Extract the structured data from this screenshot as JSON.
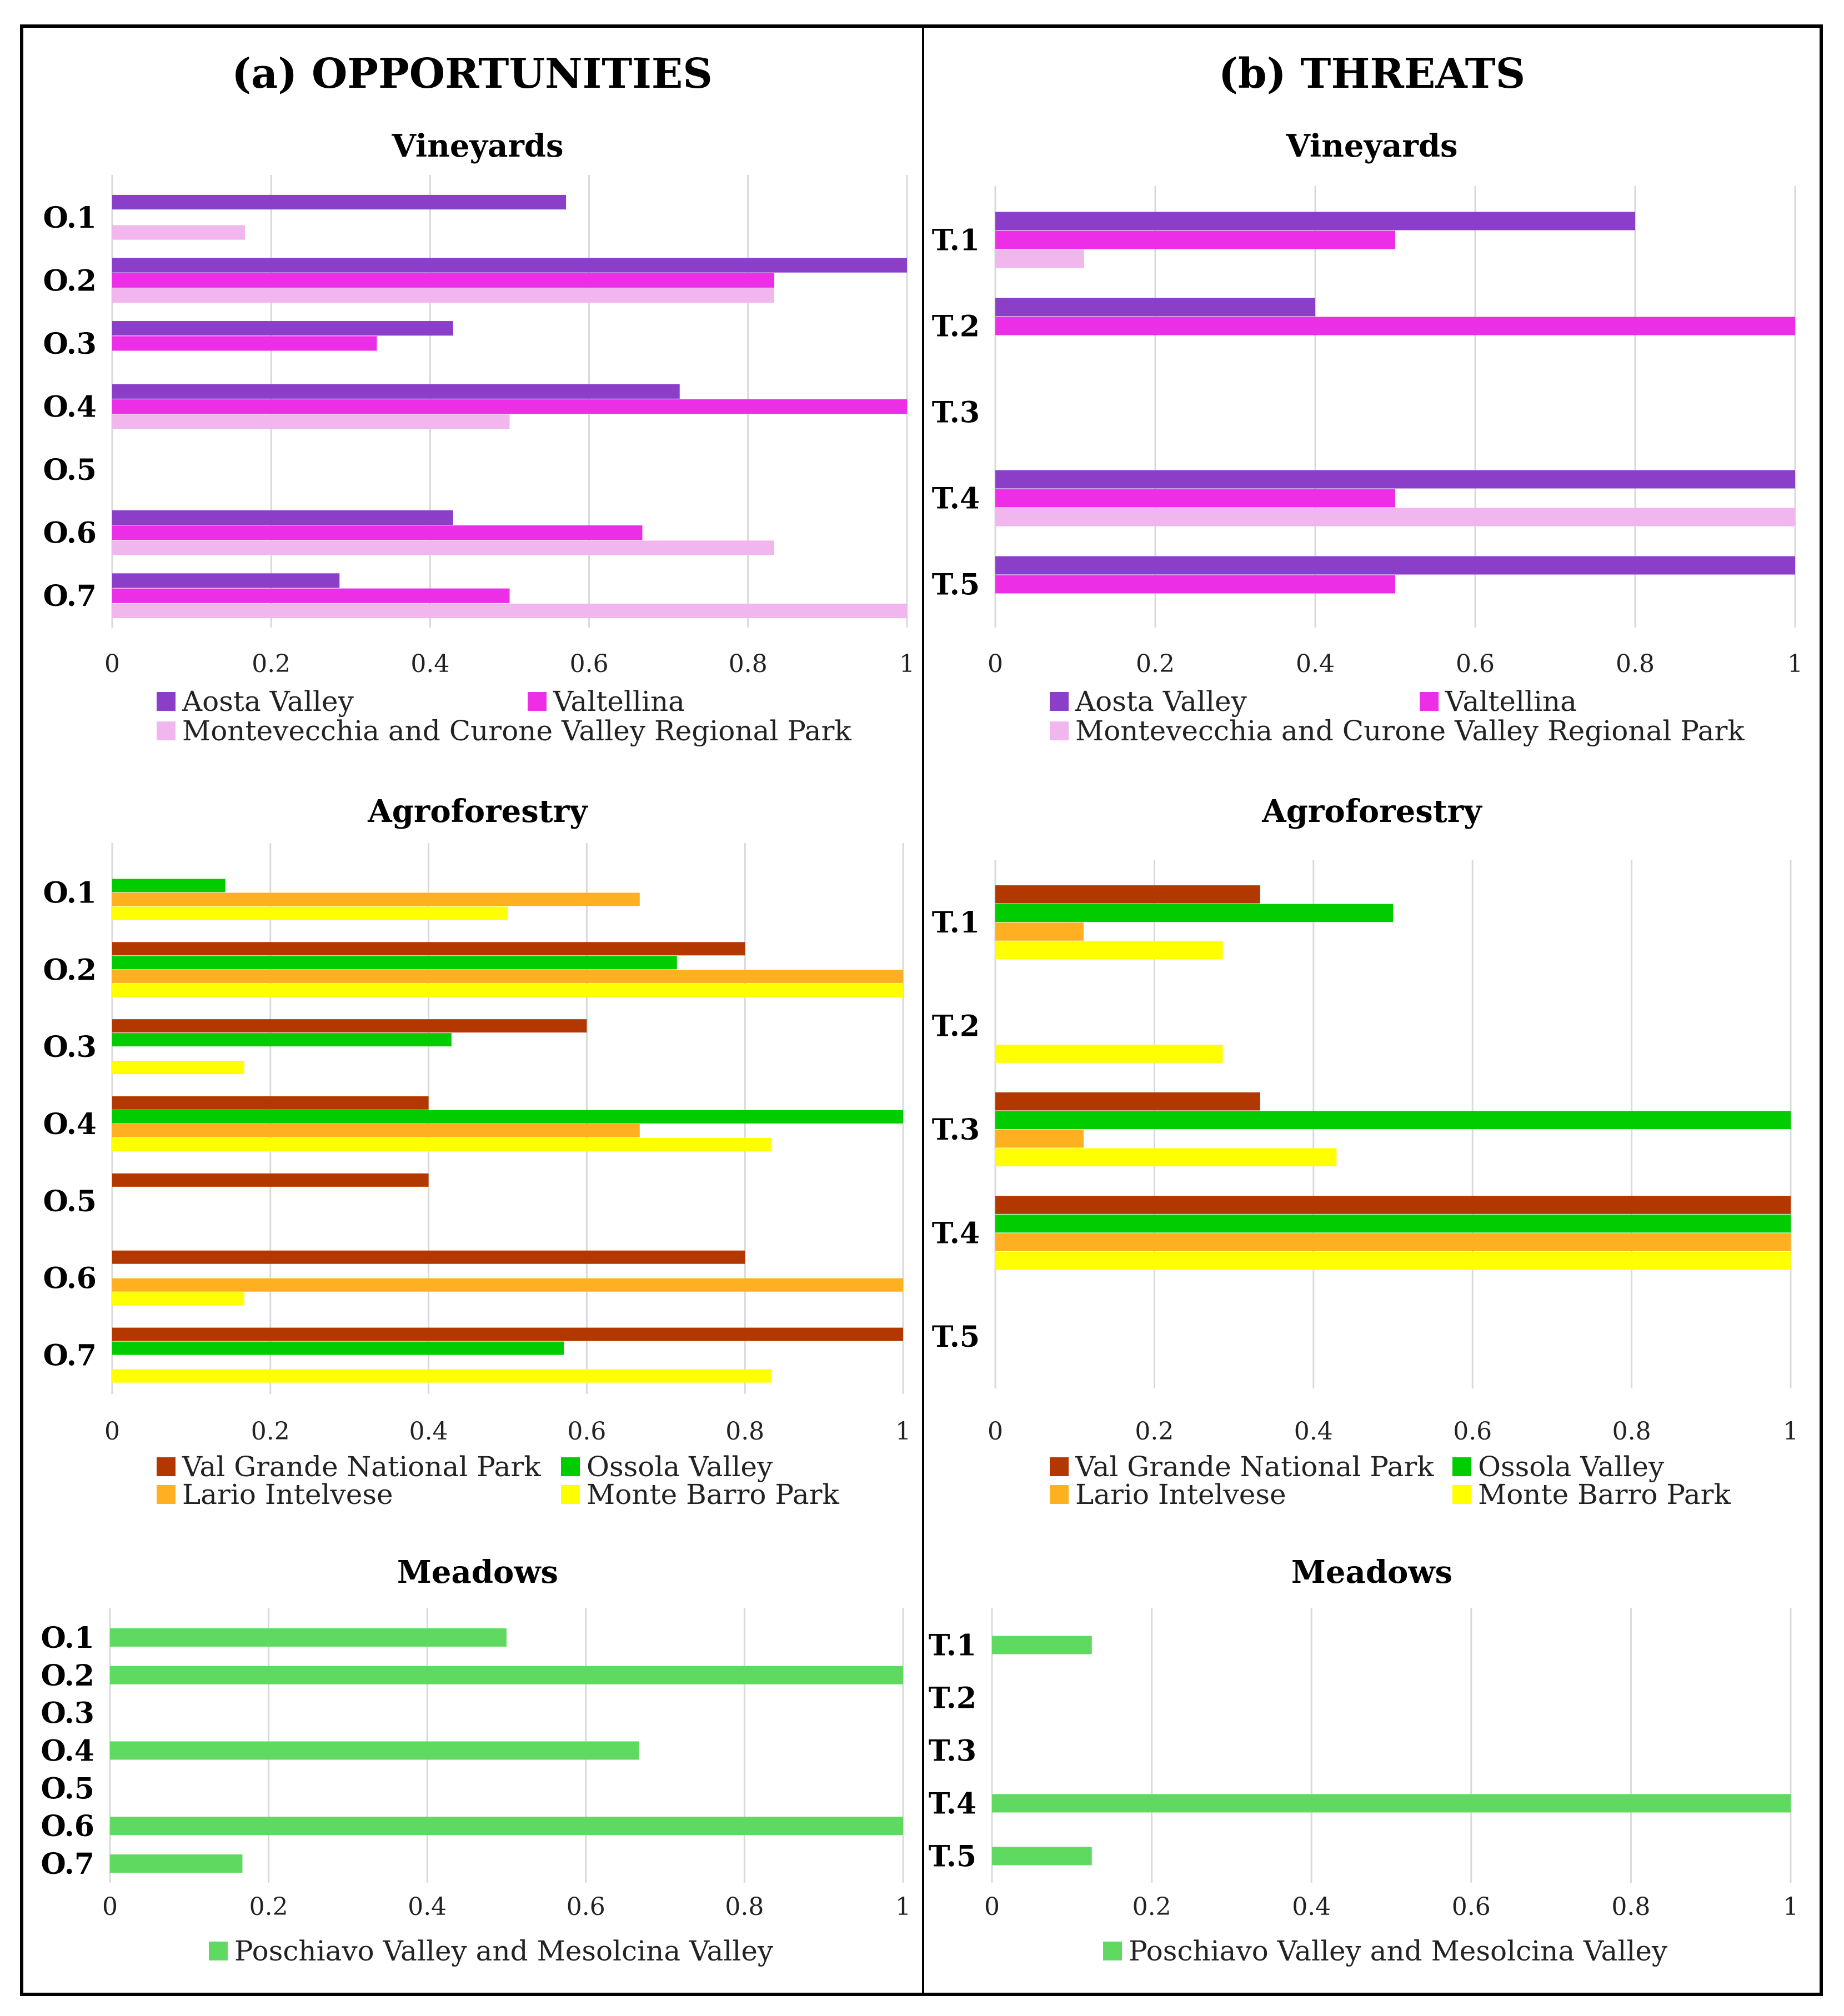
{
  "columns": {
    "left": {
      "title": "(a) OPPORTUNITIES"
    },
    "right": {
      "title": "(b) THREATS"
    }
  },
  "series_colors": {
    "Aosta Valley": "#8B3FC9",
    "Valtellina": "#EC2FE6",
    "Montevecchia and Curone Valley Regional Park": "#F2B6EE",
    "Val Grande National Park": "#B23800",
    "Ossola Valley": "#00CC00",
    "Lario Intelvese": "#FFB020",
    "Monte Barro Park": "#FFFF00",
    "Poschiavo Valley and Mesolcina Valley": "#5FD95F"
  },
  "chart_data": [
    {
      "id": "opp-vineyards",
      "type": "bar",
      "orientation": "horizontal",
      "title": "Vineyards",
      "xlim": [
        0,
        1
      ],
      "xticks": [
        "0",
        "0.2",
        "0.4",
        "0.6",
        "0.8",
        "1"
      ],
      "categories": [
        "O.1",
        "O.2",
        "O.3",
        "O.4",
        "O.5",
        "O.6",
        "O.7"
      ],
      "series": [
        {
          "name": "Aosta Valley",
          "values": [
            0.571,
            1.0,
            0.429,
            0.714,
            0,
            0.429,
            0.286
          ]
        },
        {
          "name": "Valtellina",
          "values": [
            0,
            0.833,
            0.333,
            1.0,
            0,
            0.667,
            0.5
          ]
        },
        {
          "name": "Montevecchia and Curone Valley Regional Park",
          "values": [
            0.167,
            0.833,
            0,
            0.5,
            0,
            0.833,
            1.0
          ]
        }
      ],
      "legend": [
        "Aosta Valley",
        "Valtellina",
        "Montevecchia and Curone Valley Regional Park"
      ]
    },
    {
      "id": "opp-agroforestry",
      "type": "bar",
      "orientation": "horizontal",
      "title": "Agroforestry",
      "xlim": [
        0,
        1
      ],
      "xticks": [
        "0",
        "0.2",
        "0.4",
        "0.6",
        "0.8",
        "1"
      ],
      "categories": [
        "O.1",
        "O.2",
        "O.3",
        "O.4",
        "O.5",
        "O.6",
        "O.7"
      ],
      "series": [
        {
          "name": "Val Grande National Park",
          "values": [
            0,
            0.8,
            0.6,
            0.4,
            0.4,
            0.8,
            1.0
          ]
        },
        {
          "name": "Ossola Valley",
          "values": [
            0.143,
            0.714,
            0.429,
            1.0,
            0,
            0,
            0.571
          ]
        },
        {
          "name": "Lario Intelvese",
          "values": [
            0.667,
            1.0,
            0,
            0.667,
            0,
            1.0,
            0
          ]
        },
        {
          "name": "Monte Barro Park",
          "values": [
            0.5,
            1.0,
            0.167,
            0.833,
            0,
            0.167,
            0.833
          ]
        }
      ],
      "legend": [
        "Val Grande National Park",
        "Ossola Valley",
        "Lario Intelvese",
        "Monte Barro Park"
      ]
    },
    {
      "id": "opp-meadows",
      "type": "bar",
      "orientation": "horizontal",
      "title": "Meadows",
      "xlim": [
        0,
        1
      ],
      "xticks": [
        "0",
        "0.2",
        "0.4",
        "0.6",
        "0.8",
        "1"
      ],
      "categories": [
        "O.1",
        "O.2",
        "O.3",
        "O.4",
        "O.5",
        "O.6",
        "O.7"
      ],
      "series": [
        {
          "name": "Poschiavo Valley and Mesolcina Valley",
          "values": [
            0.5,
            1.0,
            0,
            0.667,
            0,
            1.0,
            0.167
          ]
        }
      ],
      "legend": [
        "Poschiavo Valley and Mesolcina Valley"
      ]
    },
    {
      "id": "thr-vineyards",
      "type": "bar",
      "orientation": "horizontal",
      "title": "Vineyards",
      "xlim": [
        0,
        1
      ],
      "xticks": [
        "0",
        "0.2",
        "0.4",
        "0.6",
        "0.8",
        "1"
      ],
      "categories": [
        "T.1",
        "T.2",
        "T.3",
        "T.4",
        "T.5"
      ],
      "series": [
        {
          "name": "Aosta Valley",
          "values": [
            0.8,
            0.4,
            0,
            1.0,
            1.0
          ]
        },
        {
          "name": "Valtellina",
          "values": [
            0.5,
            1.0,
            0,
            0.5,
            0.5
          ]
        },
        {
          "name": "Montevecchia and Curone Valley Regional Park",
          "values": [
            0.111,
            0,
            0,
            1.0,
            0
          ]
        }
      ],
      "legend": [
        "Aosta Valley",
        "Valtellina",
        "Montevecchia and Curone Valley Regional Park"
      ]
    },
    {
      "id": "thr-agroforestry",
      "type": "bar",
      "orientation": "horizontal",
      "title": "Agroforestry",
      "xlim": [
        0,
        1
      ],
      "xticks": [
        "0",
        "0.2",
        "0.4",
        "0.6",
        "0.8",
        "1"
      ],
      "categories": [
        "T.1",
        "T.2",
        "T.3",
        "T.4",
        "T.5"
      ],
      "series": [
        {
          "name": "Val Grande National Park",
          "values": [
            0.333,
            0,
            0.333,
            1.0,
            0
          ]
        },
        {
          "name": "Ossola Valley",
          "values": [
            0.5,
            0,
            1.0,
            1.0,
            0
          ]
        },
        {
          "name": "Lario Intelvese",
          "values": [
            0.111,
            0,
            0.111,
            1.0,
            0
          ]
        },
        {
          "name": "Monte Barro Park",
          "values": [
            0.286,
            0.286,
            0.429,
            1.0,
            0
          ]
        }
      ],
      "legend": [
        "Val Grande National Park",
        "Ossola Valley",
        "Lario Intelvese",
        "Monte Barro Park"
      ]
    },
    {
      "id": "thr-meadows",
      "type": "bar",
      "orientation": "horizontal",
      "title": "Meadows",
      "xlim": [
        0,
        1
      ],
      "xticks": [
        "0",
        "0.2",
        "0.4",
        "0.6",
        "0.8",
        "1"
      ],
      "categories": [
        "T.1",
        "T.2",
        "T.3",
        "T.4",
        "T.5"
      ],
      "series": [
        {
          "name": "Poschiavo Valley and Mesolcina Valley",
          "values": [
            0.125,
            0,
            0,
            1.0,
            0.125
          ]
        }
      ],
      "legend": [
        "Poschiavo Valley and Mesolcina Valley"
      ]
    }
  ]
}
